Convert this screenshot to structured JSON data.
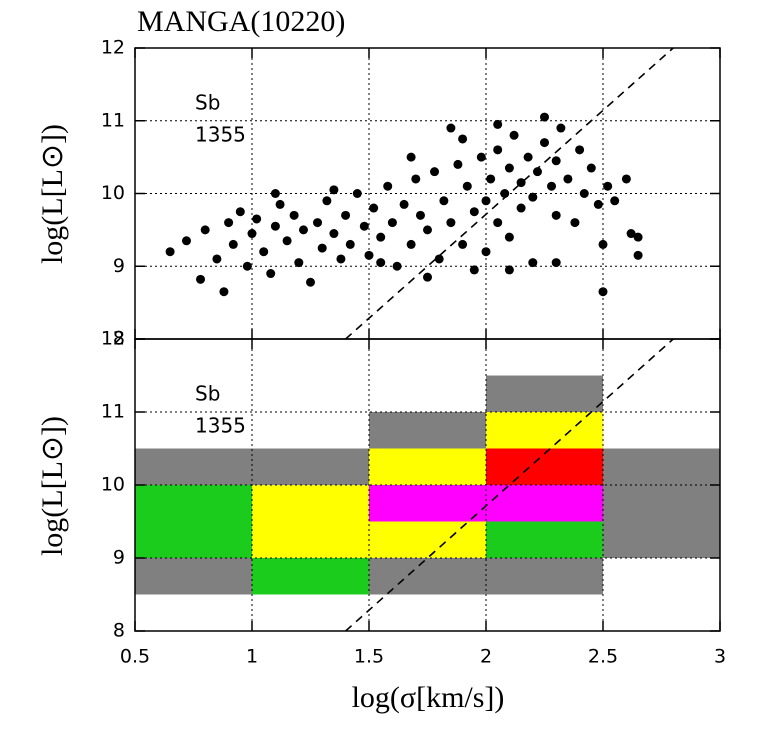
{
  "chart_data": [
    {
      "type": "scatter",
      "title": "MANGA(10220)",
      "ylabel": "log(L[L⊙])",
      "annotations": [
        "Sb",
        "1355"
      ],
      "color": "#000000",
      "xlim": [
        0.5,
        3
      ],
      "ylim": [
        8,
        12
      ],
      "xticks": [
        0.5,
        1,
        1.5,
        2,
        2.5,
        3
      ],
      "yticks": [
        8,
        9,
        10,
        11,
        12
      ],
      "grid": true,
      "diagonal": {
        "x": [
          1.4,
          2.8
        ],
        "y": [
          8,
          12
        ]
      },
      "x": [
        0.65,
        0.72,
        0.78,
        0.8,
        0.85,
        0.88,
        0.9,
        0.92,
        0.95,
        0.98,
        1.0,
        1.02,
        1.05,
        1.08,
        1.1,
        1.12,
        1.15,
        1.18,
        1.2,
        1.22,
        1.25,
        1.28,
        1.3,
        1.32,
        1.35,
        1.38,
        1.4,
        1.42,
        1.45,
        1.48,
        1.5,
        1.52,
        1.55,
        1.58,
        1.6,
        1.62,
        1.65,
        1.68,
        1.7,
        1.72,
        1.75,
        1.78,
        1.8,
        1.82,
        1.85,
        1.85,
        1.88,
        1.9,
        1.92,
        1.95,
        1.98,
        2.0,
        2.0,
        2.02,
        2.05,
        2.05,
        2.08,
        2.1,
        2.1,
        2.12,
        2.15,
        2.15,
        2.18,
        2.2,
        2.2,
        2.22,
        2.25,
        2.25,
        2.28,
        2.3,
        2.3,
        2.32,
        2.35,
        2.38,
        2.4,
        2.42,
        2.45,
        2.48,
        2.5,
        2.5,
        2.52,
        2.55,
        2.6,
        2.62,
        2.65,
        2.65,
        1.95,
        1.75,
        1.55,
        2.1,
        2.3,
        1.68,
        1.9,
        2.05,
        1.35,
        1.1
      ],
      "y": [
        9.2,
        9.35,
        8.82,
        9.5,
        9.1,
        8.65,
        9.6,
        9.3,
        9.75,
        9.0,
        9.45,
        9.65,
        9.2,
        8.9,
        9.55,
        9.85,
        9.35,
        9.7,
        9.05,
        9.5,
        8.78,
        9.6,
        9.25,
        9.9,
        9.45,
        9.1,
        9.7,
        9.3,
        10.0,
        9.55,
        9.15,
        9.8,
        9.4,
        10.1,
        9.6,
        9.0,
        9.85,
        9.3,
        10.2,
        9.7,
        9.5,
        10.3,
        9.1,
        9.9,
        10.9,
        9.6,
        10.4,
        9.3,
        10.1,
        9.75,
        10.5,
        9.9,
        9.2,
        10.2,
        9.6,
        10.6,
        10.0,
        9.4,
        10.35,
        10.8,
        9.8,
        10.15,
        10.5,
        9.05,
        9.95,
        10.3,
        11.05,
        10.7,
        10.1,
        9.7,
        10.45,
        10.9,
        10.2,
        9.6,
        10.6,
        10.0,
        10.35,
        9.85,
        8.65,
        9.3,
        10.1,
        9.9,
        10.2,
        9.45,
        9.4,
        9.15,
        8.95,
        8.85,
        9.05,
        8.95,
        9.05,
        10.5,
        10.75,
        10.95,
        10.05,
        10.0
      ]
    },
    {
      "type": "heatmap",
      "xlabel": "log(σ[km/s])",
      "ylabel": "log(L[L⊙])",
      "annotations": [
        "Sb",
        "1355"
      ],
      "xlim": [
        0.5,
        3
      ],
      "ylim": [
        8,
        12
      ],
      "xticks": [
        0.5,
        1,
        1.5,
        2,
        2.5,
        3
      ],
      "yticks": [
        8,
        9,
        10,
        11,
        12
      ],
      "grid": true,
      "diagonal": {
        "x": [
          1.4,
          2.8
        ],
        "y": [
          8,
          12
        ]
      },
      "cells": [
        {
          "x": [
            2,
            2.5
          ],
          "y": [
            11,
            11.5
          ],
          "color": "#808080"
        },
        {
          "x": [
            1.5,
            2
          ],
          "y": [
            10.5,
            11
          ],
          "color": "#808080"
        },
        {
          "x": [
            2,
            2.5
          ],
          "y": [
            10.5,
            11
          ],
          "color": "#ffff00"
        },
        {
          "x": [
            0.5,
            1.5
          ],
          "y": [
            10,
            10.5
          ],
          "color": "#808080"
        },
        {
          "x": [
            1.5,
            2
          ],
          "y": [
            10,
            10.5
          ],
          "color": "#ffff00"
        },
        {
          "x": [
            2,
            2.5
          ],
          "y": [
            10,
            10.5
          ],
          "color": "#ff0000"
        },
        {
          "x": [
            2.5,
            3
          ],
          "y": [
            9,
            10.5
          ],
          "color": "#808080"
        },
        {
          "x": [
            0.5,
            1
          ],
          "y": [
            9,
            10
          ],
          "color": "#1ccc1c"
        },
        {
          "x": [
            1,
            1.5
          ],
          "y": [
            9,
            10
          ],
          "color": "#ffff00"
        },
        {
          "x": [
            1.5,
            2.5
          ],
          "y": [
            9.5,
            10
          ],
          "color": "#ff00ff"
        },
        {
          "x": [
            1.5,
            2
          ],
          "y": [
            9,
            9.5
          ],
          "color": "#ffff00"
        },
        {
          "x": [
            2,
            2.5
          ],
          "y": [
            9,
            9.5
          ],
          "color": "#1ccc1c"
        },
        {
          "x": [
            0.5,
            1
          ],
          "y": [
            8.5,
            9
          ],
          "color": "#808080"
        },
        {
          "x": [
            1,
            1.5
          ],
          "y": [
            8.5,
            9
          ],
          "color": "#1ccc1c"
        },
        {
          "x": [
            1.5,
            2.5
          ],
          "y": [
            8.5,
            9
          ],
          "color": "#808080"
        }
      ]
    }
  ]
}
